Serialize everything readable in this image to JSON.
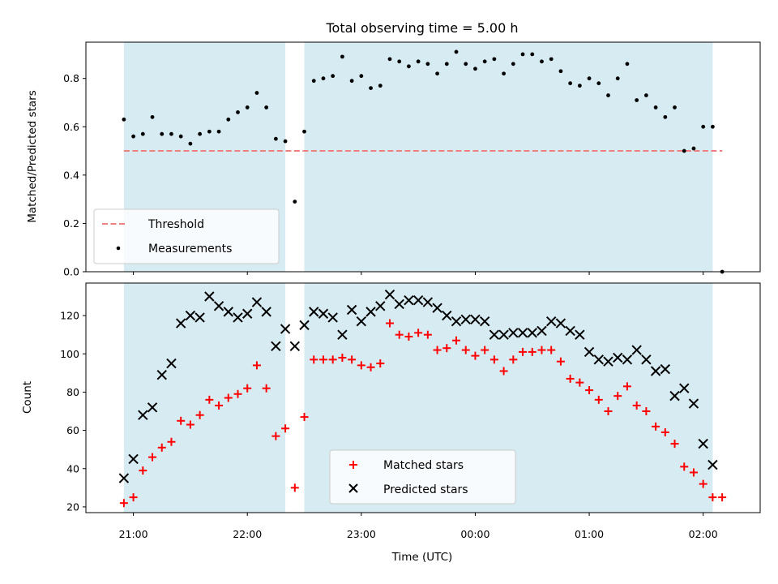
{
  "chart_data": [
    {
      "type": "scatter",
      "title": "Total observing time = 5.00 h",
      "xlabel": "",
      "ylabel": "Matched/Predicted stars",
      "ylim": [
        0,
        0.95
      ],
      "yticks": [
        0.0,
        0.2,
        0.4,
        0.6,
        0.8
      ],
      "ytick_labels": [
        "0.0",
        "0.2",
        "0.4",
        "0.6",
        "0.8"
      ],
      "threshold": {
        "name": "Threshold",
        "value": 0.5,
        "x_start": "20:55",
        "x_end": "02:10",
        "color": "#f08080"
      },
      "legend": {
        "location": "lower-left",
        "entries": [
          "Threshold",
          "Measurements"
        ]
      },
      "series": [
        {
          "name": "Measurements",
          "color": "#000000",
          "x": [
            "20:55",
            "21:00",
            "21:05",
            "21:10",
            "21:15",
            "21:20",
            "21:25",
            "21:30",
            "21:35",
            "21:40",
            "21:45",
            "21:50",
            "21:55",
            "22:00",
            "22:05",
            "22:10",
            "22:15",
            "22:20",
            "22:25",
            "22:30",
            "22:35",
            "22:40",
            "22:45",
            "22:50",
            "22:55",
            "23:00",
            "23:05",
            "23:10",
            "23:15",
            "23:20",
            "23:25",
            "23:30",
            "23:35",
            "23:40",
            "23:45",
            "23:50",
            "23:55",
            "00:00",
            "00:05",
            "00:10",
            "00:15",
            "00:20",
            "00:25",
            "00:30",
            "00:35",
            "00:40",
            "00:45",
            "00:50",
            "00:55",
            "01:00",
            "01:05",
            "01:10",
            "01:15",
            "01:20",
            "01:25",
            "01:30",
            "01:35",
            "01:40",
            "01:45",
            "01:50",
            "01:55",
            "02:00",
            "02:05",
            "02:10"
          ],
          "y": [
            0.63,
            0.56,
            0.57,
            0.64,
            0.57,
            0.57,
            0.56,
            0.53,
            0.57,
            0.58,
            0.58,
            0.63,
            0.66,
            0.68,
            0.74,
            0.68,
            0.55,
            0.54,
            0.29,
            0.58,
            0.79,
            0.8,
            0.81,
            0.89,
            0.79,
            0.81,
            0.76,
            0.77,
            0.88,
            0.87,
            0.85,
            0.87,
            0.86,
            0.82,
            0.86,
            0.91,
            0.86,
            0.84,
            0.87,
            0.88,
            0.82,
            0.86,
            0.9,
            0.9,
            0.87,
            0.88,
            0.83,
            0.78,
            0.77,
            0.8,
            0.78,
            0.73,
            0.8,
            0.86,
            0.71,
            0.73,
            0.68,
            0.64,
            0.68,
            0.5,
            0.51,
            0.6,
            0.6,
            0.0
          ]
        }
      ]
    },
    {
      "type": "scatter",
      "title": "",
      "xlabel": "Time (UTC)",
      "ylabel": "Count",
      "ylim": [
        17,
        137
      ],
      "yticks": [
        20,
        40,
        60,
        80,
        100,
        120
      ],
      "xlim": [
        "20:35",
        "02:30"
      ],
      "xtick_labels": [
        "21:00",
        "22:00",
        "23:00",
        "00:00",
        "01:00",
        "02:00"
      ],
      "legend": {
        "location": "lower-center",
        "entries": [
          "Matched stars",
          "Predicted stars"
        ]
      },
      "series": [
        {
          "name": "Matched stars",
          "marker": "+",
          "color": "#ff0000",
          "x": [
            "20:55",
            "21:00",
            "21:05",
            "21:10",
            "21:15",
            "21:20",
            "21:25",
            "21:30",
            "21:35",
            "21:40",
            "21:45",
            "21:50",
            "21:55",
            "22:00",
            "22:05",
            "22:10",
            "22:15",
            "22:20",
            "22:25",
            "22:30",
            "22:35",
            "22:40",
            "22:45",
            "22:50",
            "22:55",
            "23:00",
            "23:05",
            "23:10",
            "23:15",
            "23:20",
            "23:25",
            "23:30",
            "23:35",
            "23:40",
            "23:45",
            "23:50",
            "23:55",
            "00:00",
            "00:05",
            "00:10",
            "00:15",
            "00:20",
            "00:25",
            "00:30",
            "00:35",
            "00:40",
            "00:45",
            "00:50",
            "00:55",
            "01:00",
            "01:05",
            "01:10",
            "01:15",
            "01:20",
            "01:25",
            "01:30",
            "01:35",
            "01:40",
            "01:45",
            "01:50",
            "01:55",
            "02:00",
            "02:05",
            "02:10"
          ],
          "y": [
            22,
            25,
            39,
            46,
            51,
            54,
            65,
            63,
            68,
            76,
            73,
            77,
            79,
            82,
            94,
            82,
            57,
            61,
            30,
            67,
            97,
            97,
            97,
            98,
            97,
            94,
            93,
            95,
            116,
            110,
            109,
            111,
            110,
            102,
            103,
            107,
            102,
            99,
            102,
            97,
            91,
            97,
            101,
            101,
            102,
            102,
            96,
            87,
            85,
            81,
            76,
            70,
            78,
            83,
            73,
            70,
            62,
            59,
            53,
            41,
            38,
            32,
            25,
            25
          ]
        },
        {
          "name": "Predicted stars",
          "marker": "x",
          "color": "#000000",
          "x": [
            "20:55",
            "21:00",
            "21:05",
            "21:10",
            "21:15",
            "21:20",
            "21:25",
            "21:30",
            "21:35",
            "21:40",
            "21:45",
            "21:50",
            "21:55",
            "22:00",
            "22:05",
            "22:10",
            "22:15",
            "22:20",
            "22:25",
            "22:30",
            "22:35",
            "22:40",
            "22:45",
            "22:50",
            "22:55",
            "23:00",
            "23:05",
            "23:10",
            "23:15",
            "23:20",
            "23:25",
            "23:30",
            "23:35",
            "23:40",
            "23:45",
            "23:50",
            "23:55",
            "00:00",
            "00:05",
            "00:10",
            "00:15",
            "00:20",
            "00:25",
            "00:30",
            "00:35",
            "00:40",
            "00:45",
            "00:50",
            "00:55",
            "01:00",
            "01:05",
            "01:10",
            "01:15",
            "01:20",
            "01:25",
            "01:30",
            "01:35",
            "01:40",
            "01:45",
            "01:50",
            "01:55",
            "02:00",
            "02:05"
          ],
          "y": [
            35,
            45,
            68,
            72,
            89,
            95,
            116,
            120,
            119,
            130,
            125,
            122,
            119,
            121,
            127,
            122,
            104,
            113,
            104,
            115,
            122,
            121,
            119,
            110,
            123,
            117,
            122,
            125,
            131,
            126,
            128,
            128,
            127,
            124,
            120,
            117,
            118,
            118,
            117,
            110,
            110,
            111,
            111,
            111,
            112,
            117,
            116,
            112,
            110,
            101,
            97,
            96,
            98,
            97,
            102,
            97,
            91,
            92,
            78,
            82,
            74,
            53,
            42
          ]
        }
      ]
    }
  ],
  "shaded_intervals": [
    {
      "start": "20:55",
      "end": "22:20",
      "color": "#add8e6"
    },
    {
      "start": "22:30",
      "end": "02:05",
      "color": "#add8e6"
    }
  ]
}
